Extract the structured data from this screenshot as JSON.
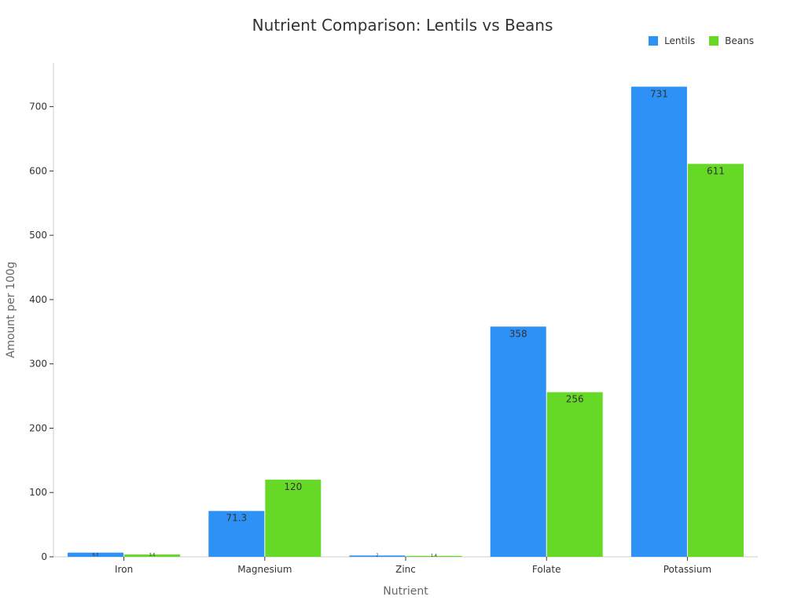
{
  "chart_data": {
    "type": "bar",
    "title": "Nutrient Comparison: Lentils vs Beans",
    "xlabel": "Nutrient",
    "ylabel": "Amount per 100g",
    "categories": [
      "Iron",
      "Magnesium",
      "Zinc",
      "Folate",
      "Potassium"
    ],
    "series": [
      {
        "name": "Lentils",
        "color": "#2e91f5",
        "values": [
          6.5,
          71.3,
          2.0,
          358,
          731
        ],
        "labels": [
          "6.5",
          "71.3",
          "2",
          "358",
          "731"
        ]
      },
      {
        "name": "Beans",
        "color": "#66d926",
        "values": [
          3.6,
          120,
          1.4,
          256,
          611
        ],
        "labels": [
          "3.6",
          "120",
          "1.4",
          "256",
          "611"
        ]
      }
    ],
    "ylim": [
      0,
      768
    ],
    "yticks": [
      0,
      100,
      200,
      300,
      400,
      500,
      600,
      700
    ],
    "grid": false,
    "legend": "top-right"
  }
}
